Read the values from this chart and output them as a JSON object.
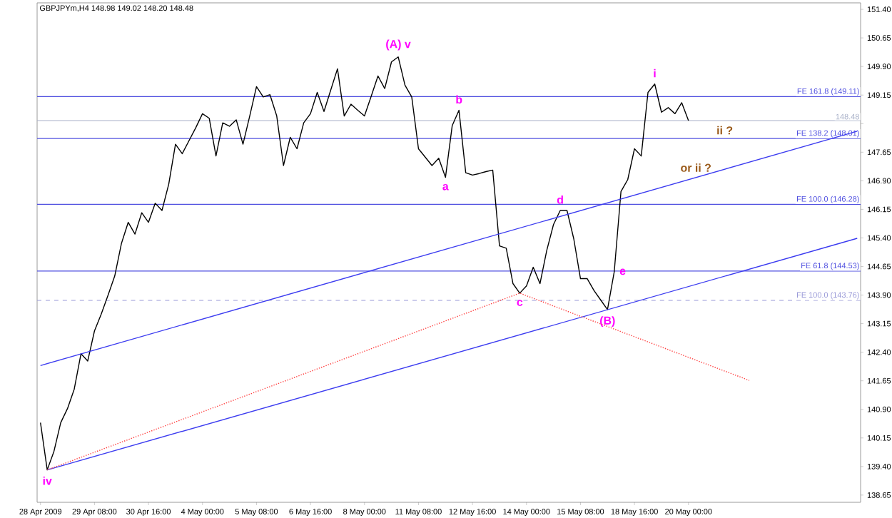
{
  "chart_data": {
    "type": "line",
    "title": "GBPJPYm,H4 148.98 149.02 148.20 148.48",
    "categories": [
      "28 Apr 2009",
      null,
      null,
      null,
      null,
      null,
      null,
      null,
      "29 Apr 08:00",
      null,
      null,
      null,
      null,
      null,
      null,
      null,
      "30 Apr 16:00",
      null,
      null,
      null,
      null,
      null,
      null,
      null,
      "4 May 00:00",
      null,
      null,
      null,
      null,
      null,
      null,
      null,
      "5 May 08:00",
      null,
      null,
      null,
      null,
      null,
      null,
      null,
      "6 May 16:00",
      null,
      null,
      null,
      null,
      null,
      null,
      null,
      "8 May 00:00",
      null,
      null,
      null,
      null,
      null,
      null,
      null,
      "11 May 08:00",
      null,
      null,
      null,
      null,
      null,
      null,
      null,
      "12 May 16:00",
      null,
      null,
      null,
      null,
      null,
      null,
      null,
      "14 May 00:00",
      null,
      null,
      null,
      null,
      null,
      null,
      null,
      "15 May 08:00",
      null,
      null,
      null,
      null,
      null,
      null,
      null,
      "18 May 16:00",
      null,
      null,
      null,
      null,
      null,
      null,
      null,
      "20 May 00:00",
      null,
      null,
      null,
      null,
      null,
      null,
      null,
      null,
      null,
      null,
      null,
      null,
      null,
      null,
      null,
      null,
      null,
      null,
      null,
      null,
      null,
      null,
      null,
      null,
      null
    ],
    "ylim": [
      138.46,
      151.57
    ],
    "yticks": [
      {
        "value": 138.65,
        "label": "138.65"
      },
      {
        "value": 139.4,
        "label": "139.40"
      },
      {
        "value": 140.15,
        "label": "140.15"
      },
      {
        "value": 140.9,
        "label": "140.90"
      },
      {
        "value": 141.65,
        "label": "141.65"
      },
      {
        "value": 142.4,
        "label": "142.40"
      },
      {
        "value": 143.15,
        "label": "143.15"
      },
      {
        "value": 143.9,
        "label": "143.90"
      },
      {
        "value": 144.65,
        "label": "144.65"
      },
      {
        "value": 145.4,
        "label": "145.40"
      },
      {
        "value": 146.15,
        "label": "146.15"
      },
      {
        "value": 146.9,
        "label": "146.90"
      },
      {
        "value": 147.65,
        "label": "147.65"
      },
      {
        "value": 148.4,
        "label": null
      },
      {
        "value": 149.15,
        "label": "149.15"
      },
      {
        "value": 149.9,
        "label": "149.90"
      },
      {
        "value": 150.65,
        "label": "150.65"
      },
      {
        "value": 151.4,
        "label": "151.40"
      }
    ],
    "series": [
      {
        "color": "#000000",
        "line_style": "solid",
        "values": [
          140.55,
          139.31,
          139.8,
          140.55,
          140.92,
          141.43,
          142.36,
          142.17,
          142.96,
          143.4,
          143.89,
          144.4,
          145.26,
          145.81,
          145.5,
          146.06,
          145.81,
          146.31,
          146.12,
          146.81,
          147.86,
          147.61,
          147.95,
          148.29,
          148.66,
          148.54,
          147.55,
          148.42,
          148.33,
          148.5,
          147.86,
          148.6,
          149.37,
          149.1,
          149.16,
          148.6,
          147.3,
          148.04,
          147.74,
          148.42,
          148.66,
          149.22,
          148.72,
          149.28,
          149.84,
          148.6,
          148.91,
          148.75,
          148.6,
          149.12,
          149.65,
          149.32,
          150.02,
          150.15,
          149.41,
          149.1,
          147.74,
          147.52,
          147.3,
          147.49,
          146.99,
          148.35,
          148.75,
          147.11,
          147.05,
          147.09,
          147.14,
          147.18,
          145.19,
          145.13,
          144.2,
          143.95,
          144.14,
          144.63,
          144.2,
          145.07,
          145.75,
          146.12,
          146.12,
          145.38,
          144.33,
          144.33,
          144.02,
          143.77,
          143.52,
          144.51,
          146.62,
          146.93,
          147.74,
          147.55,
          149.22,
          149.44,
          148.7,
          148.82,
          148.66,
          148.95,
          148.48,
          null,
          null,
          null,
          null,
          null,
          null,
          null,
          null,
          null,
          null,
          null,
          null,
          null,
          null,
          null,
          null,
          null,
          null,
          null,
          null,
          null,
          null,
          null,
          null,
          null
        ],
        "value_labels": [
          null,
          "iv",
          null,
          null,
          null,
          null,
          null,
          null,
          null,
          null,
          null,
          null,
          null,
          null,
          null,
          null,
          null,
          null,
          null,
          null,
          null,
          null,
          null,
          null,
          null,
          null,
          null,
          null,
          null,
          null,
          null,
          null,
          null,
          null,
          null,
          null,
          null,
          null,
          null,
          null,
          null,
          null,
          null,
          null,
          null,
          null,
          null,
          null,
          null,
          null,
          null,
          null,
          null,
          "(A) v",
          null,
          null,
          null,
          null,
          null,
          null,
          "a",
          null,
          "b",
          null,
          null,
          null,
          null,
          null,
          null,
          null,
          null,
          "c",
          null,
          null,
          null,
          null,
          null,
          "d",
          null,
          null,
          null,
          null,
          null,
          null,
          "(B)",
          "e",
          null,
          null,
          null,
          null,
          null,
          "i",
          null,
          null,
          null,
          null,
          null,
          null,
          null,
          null,
          null,
          null,
          null,
          null,
          null,
          null,
          null,
          null,
          null,
          null,
          null,
          null,
          null,
          null,
          null,
          null,
          null,
          null,
          null,
          null,
          null,
          null
        ]
      },
      {
        "color": "#3c3cf0",
        "line_style": "solid",
        "values": [
          142.05,
          null,
          null,
          null,
          null,
          null,
          null,
          null,
          null,
          null,
          null,
          null,
          null,
          null,
          null,
          null,
          null,
          null,
          null,
          null,
          null,
          null,
          null,
          null,
          null,
          null,
          null,
          null,
          null,
          null,
          null,
          null,
          null,
          null,
          null,
          null,
          null,
          null,
          null,
          null,
          null,
          null,
          null,
          null,
          null,
          null,
          null,
          null,
          null,
          null,
          null,
          null,
          null,
          null,
          null,
          null,
          null,
          null,
          null,
          null,
          null,
          null,
          null,
          null,
          null,
          null,
          null,
          null,
          null,
          null,
          null,
          null,
          null,
          null,
          null,
          null,
          null,
          null,
          null,
          null,
          null,
          null,
          null,
          null,
          null,
          null,
          null,
          null,
          null,
          null,
          null,
          null,
          null,
          null,
          null,
          null,
          null,
          null,
          null,
          null,
          null,
          null,
          null,
          null,
          null,
          null,
          null,
          null,
          null,
          null,
          null,
          null,
          null,
          null,
          null,
          null,
          null,
          null,
          null,
          null,
          null,
          148.2
        ]
      },
      {
        "color": "#3c3cf0",
        "line_style": "solid",
        "values": [
          null,
          139.31,
          null,
          null,
          null,
          null,
          null,
          null,
          null,
          null,
          null,
          null,
          null,
          null,
          null,
          null,
          null,
          null,
          null,
          null,
          null,
          null,
          null,
          null,
          null,
          null,
          null,
          null,
          null,
          null,
          null,
          null,
          null,
          null,
          null,
          null,
          null,
          null,
          null,
          null,
          null,
          null,
          null,
          null,
          null,
          null,
          null,
          null,
          null,
          null,
          null,
          null,
          null,
          null,
          null,
          null,
          null,
          null,
          null,
          null,
          null,
          null,
          null,
          null,
          null,
          null,
          null,
          null,
          null,
          null,
          null,
          null,
          null,
          null,
          null,
          null,
          null,
          null,
          null,
          null,
          null,
          null,
          null,
          null,
          null,
          null,
          null,
          null,
          null,
          null,
          null,
          null,
          null,
          null,
          null,
          null,
          null,
          null,
          null,
          null,
          null,
          null,
          null,
          null,
          null,
          null,
          null,
          null,
          null,
          null,
          null,
          null,
          null,
          null,
          null,
          null,
          null,
          null,
          null,
          null,
          null,
          145.39
        ]
      },
      {
        "color": "#ff4040",
        "line_style": "dotted",
        "values": [
          null,
          139.31,
          null,
          null,
          null,
          null,
          null,
          null,
          null,
          null,
          null,
          null,
          null,
          null,
          null,
          null,
          null,
          null,
          null,
          null,
          null,
          null,
          null,
          null,
          null,
          null,
          null,
          null,
          null,
          null,
          null,
          null,
          null,
          null,
          null,
          null,
          null,
          null,
          null,
          null,
          null,
          null,
          null,
          null,
          null,
          null,
          null,
          null,
          null,
          null,
          null,
          null,
          null,
          null,
          null,
          null,
          null,
          null,
          null,
          null,
          null,
          null,
          null,
          null,
          null,
          null,
          null,
          null,
          null,
          null,
          null,
          143.95,
          null,
          null,
          null,
          null,
          null,
          null,
          null,
          null,
          null,
          null,
          null,
          null,
          null,
          null,
          null,
          null,
          null,
          null,
          null,
          null,
          null,
          null,
          null,
          null,
          null,
          null,
          null,
          null,
          null,
          null,
          null,
          null,
          null,
          141.66,
          null,
          null,
          null,
          null,
          null,
          null,
          null,
          null,
          null,
          null,
          null,
          null,
          null,
          null,
          null,
          null
        ]
      }
    ],
    "ref_lines": [
      {
        "axis": "y",
        "value": 149.11,
        "label": "FE 161.8 (149.11)",
        "color": "#5050e0",
        "line_style": "solid"
      },
      {
        "axis": "y",
        "value": 148.01,
        "label": "FE 138.2 (148.01)",
        "color": "#5050e0",
        "line_style": "solid"
      },
      {
        "axis": "y",
        "value": 146.28,
        "label": "FE 100.0 (146.28)",
        "color": "#5050e0",
        "line_style": "solid"
      },
      {
        "axis": "y",
        "value": 144.53,
        "label": "FE 61.8 (144.53)",
        "color": "#5050e0",
        "line_style": "solid"
      },
      {
        "axis": "y",
        "value": 143.76,
        "label": "FE 100.0 (143.76)",
        "color": "#9a9ad8",
        "line_style": "dashed"
      },
      {
        "axis": "y",
        "value": 148.48,
        "label": "148.48",
        "color": "#a8b0c8",
        "line_style": "solid"
      }
    ],
    "annotations": [
      "ii ?",
      "or ii ?"
    ]
  }
}
